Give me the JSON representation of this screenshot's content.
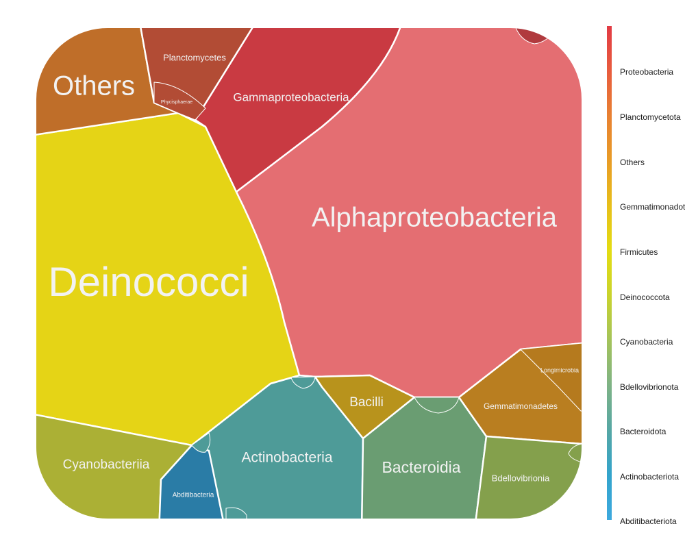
{
  "chart_data": {
    "type": "voronoi-treemap",
    "title": "",
    "cells": [
      {
        "label": "Deinococci",
        "group": "Deinococcota",
        "color": "#e5d416"
      },
      {
        "label": "Alphaproteobacteria",
        "group": "Proteobacteria",
        "color": "#e46e72"
      },
      {
        "label": "Gammaproteobacteria",
        "group": "Proteobacteria",
        "color": "#c93a42"
      },
      {
        "label": "Others",
        "group": "Others",
        "color": "#bf6e29"
      },
      {
        "label": "Planctomycetes",
        "group": "Planctomycetota",
        "color": "#b24c35"
      },
      {
        "label": "Phycisphaerae",
        "group": "Planctomycetota",
        "color": "#b24c35"
      },
      {
        "label": "Cyanobacteriia",
        "group": "Cyanobacteria",
        "color": "#abb035"
      },
      {
        "label": "Abditibacteria",
        "group": "Abditibacteriota",
        "color": "#2a7ca6"
      },
      {
        "label": "Actinobacteria",
        "group": "Actinobacteriota",
        "color": "#4e9b98"
      },
      {
        "label": "Bacilli",
        "group": "Firmicutes",
        "color": "#b8931c"
      },
      {
        "label": "Bacteroidia",
        "group": "Bacteroidota",
        "color": "#6a9d72"
      },
      {
        "label": "Gemmatimonadetes",
        "group": "Gemmatimonadota",
        "color": "#b97e20"
      },
      {
        "label": "Longimicrobia",
        "group": "Gemmatimonadota",
        "color": "#b57a1e"
      },
      {
        "label": "Bdellovibrionia",
        "group": "Bdellovibrionota",
        "color": "#84a04c"
      }
    ],
    "legend": {
      "position": "right",
      "gradient": [
        "#e23b44",
        "#e85c3e",
        "#e88132",
        "#e89c26",
        "#e7bf1a",
        "#e3dc12",
        "#c9d32d",
        "#a4c35a",
        "#7fb385",
        "#56a7a4",
        "#33a4cc",
        "#3da9de"
      ],
      "labels": [
        "Proteobacteria",
        "Planctomycetota",
        "Others",
        "Gemmatimonadota",
        "Firmicutes",
        "Deinococcota",
        "Cyanobacteria",
        "Bdellovibrionota",
        "Bacteroidota",
        "Actinobacteriota",
        "Abditibacteriota"
      ]
    }
  }
}
